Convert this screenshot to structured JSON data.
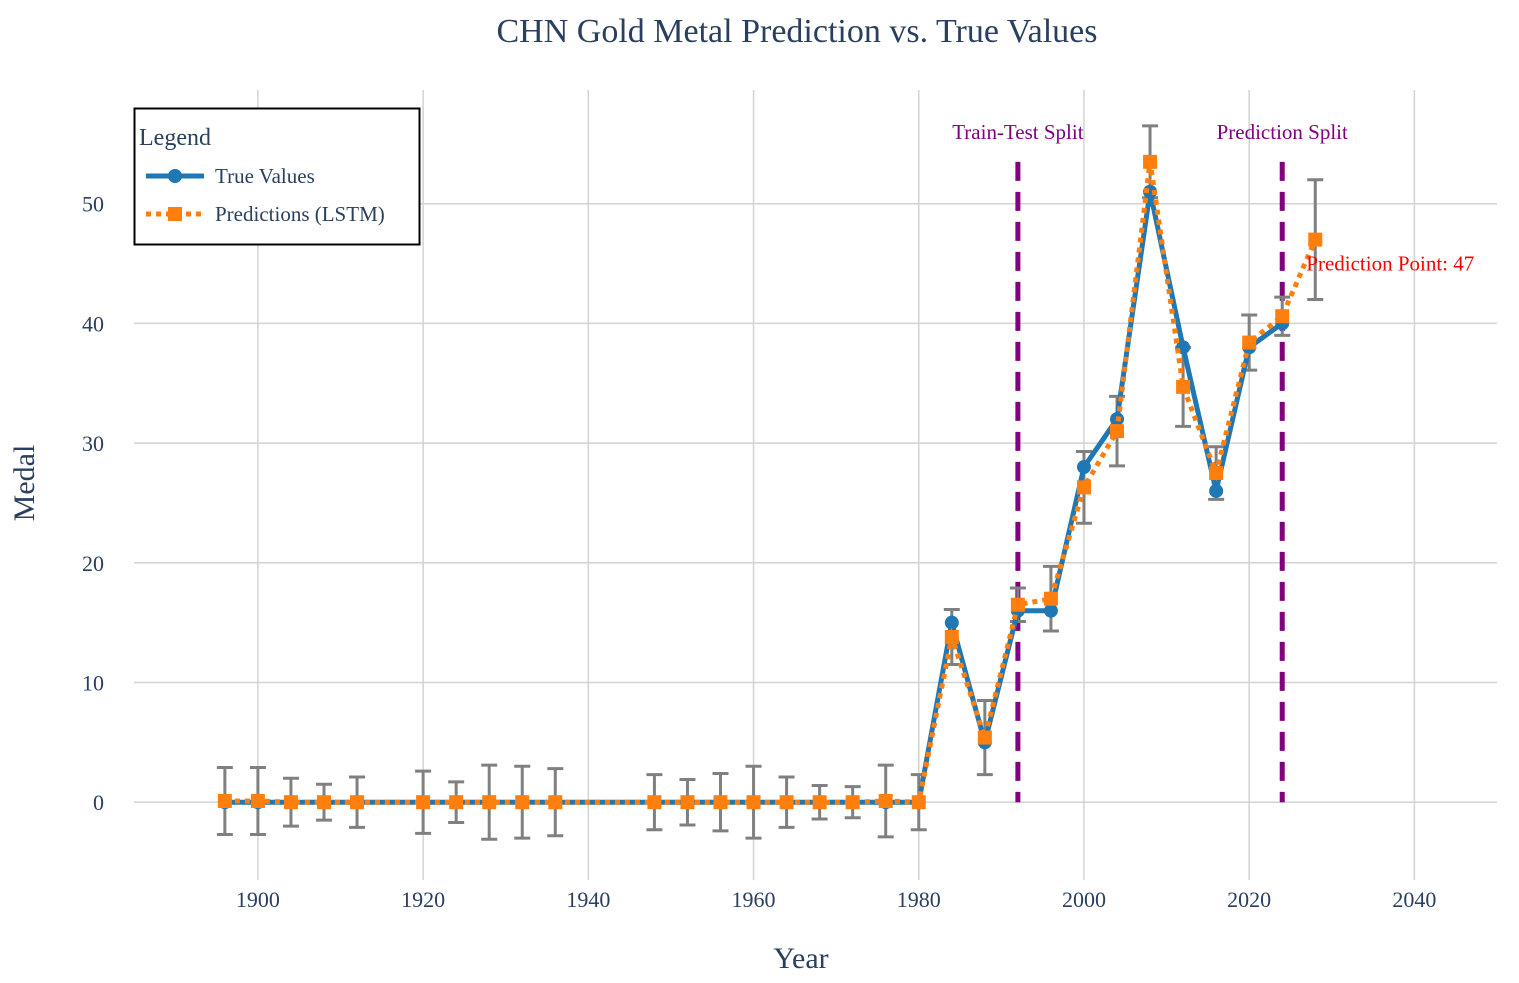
{
  "chart_data": {
    "type": "line",
    "title": "CHN Gold Metal Prediction vs. True Values",
    "xlabel": "Year",
    "ylabel": "Medal",
    "xlim": [
      1885,
      2050
    ],
    "ylim": [
      -6.5,
      59.5
    ],
    "x_ticks": [
      1900,
      1920,
      1940,
      1960,
      1980,
      2000,
      2020,
      2040
    ],
    "y_ticks": [
      0,
      10,
      20,
      30,
      40,
      50
    ],
    "grid": true,
    "legend": {
      "title": "Legend",
      "placement": "top-left",
      "items": [
        "True Values",
        "Predictions (LSTM)"
      ]
    },
    "colors": {
      "true": "#1f77b4",
      "pred": "#ff7f0e",
      "error": "#808080",
      "split": "#800080",
      "annotation": "#ff0000"
    },
    "series": [
      {
        "name": "True Values",
        "style": "solid line with circle markers",
        "x": [
          1896,
          1900,
          1904,
          1908,
          1912,
          1920,
          1924,
          1928,
          1932,
          1936,
          1948,
          1952,
          1956,
          1960,
          1964,
          1968,
          1972,
          1976,
          1980,
          1984,
          1988,
          1992,
          1996,
          2000,
          2004,
          2008,
          2012,
          2016,
          2020,
          2024
        ],
        "values": [
          0,
          0,
          0,
          0,
          0,
          0,
          0,
          0,
          0,
          0,
          0,
          0,
          0,
          0,
          0,
          0,
          0,
          0,
          0,
          15,
          5,
          16,
          16,
          28,
          32,
          51,
          38,
          26,
          38,
          40
        ]
      },
      {
        "name": "Predictions (LSTM)",
        "style": "dotted line with square markers",
        "x": [
          1896,
          1900,
          1904,
          1908,
          1912,
          1920,
          1924,
          1928,
          1932,
          1936,
          1948,
          1952,
          1956,
          1960,
          1964,
          1968,
          1972,
          1976,
          1980,
          1984,
          1988,
          1992,
          1996,
          2000,
          2004,
          2008,
          2012,
          2016,
          2020,
          2024,
          2028
        ],
        "values": [
          0.1,
          0.1,
          0.0,
          0.0,
          0.0,
          0.0,
          0.0,
          0.0,
          0.0,
          0.0,
          0.0,
          0.0,
          0.0,
          0.0,
          0.0,
          0.0,
          0.0,
          0.1,
          0.0,
          13.8,
          5.4,
          16.5,
          17.0,
          26.3,
          31.0,
          53.5,
          34.7,
          27.5,
          38.4,
          40.6,
          47.0
        ],
        "error": [
          2.8,
          2.8,
          2.0,
          1.5,
          2.1,
          2.6,
          1.7,
          3.1,
          3.0,
          2.8,
          2.3,
          1.9,
          2.4,
          3.0,
          2.1,
          1.4,
          1.3,
          3.0,
          2.3,
          2.3,
          3.1,
          1.4,
          2.7,
          3.0,
          2.9,
          3.0,
          3.3,
          2.2,
          2.3,
          1.6,
          5.0
        ]
      }
    ],
    "vertical_lines": [
      {
        "x": 1992,
        "label": "Train-Test Split"
      },
      {
        "x": 2024,
        "label": "Prediction Split"
      }
    ],
    "annotation": {
      "x": 2028,
      "y": 47,
      "text": "Prediction Point: 47"
    }
  }
}
